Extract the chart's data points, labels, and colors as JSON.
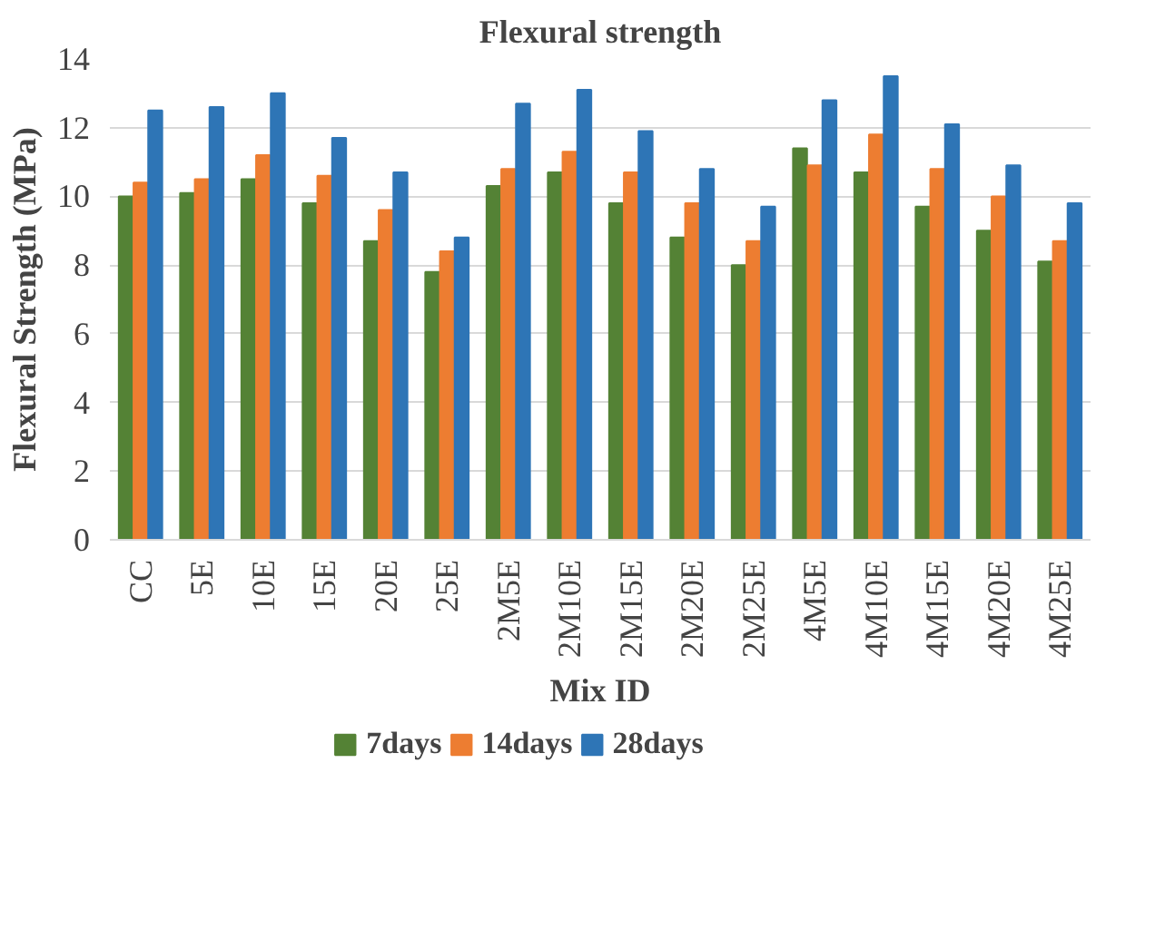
{
  "chart_data": {
    "type": "bar",
    "title": "Flexural strength",
    "xlabel": "Mix ID",
    "ylabel": "Flexural Strength (MPa)",
    "categories": [
      "CC",
      "5E",
      "10E",
      "15E",
      "20E",
      "25E",
      "2M5E",
      "2M10E",
      "2M15E",
      "2M20E",
      "2M25E",
      "4M5E",
      "4M10E",
      "4M15E",
      "4M20E",
      "4M25E"
    ],
    "series": [
      {
        "name": "7days",
        "color": "#548235",
        "values": [
          10.0,
          10.1,
          10.5,
          9.8,
          8.7,
          7.8,
          10.3,
          10.7,
          9.8,
          8.8,
          8.0,
          11.4,
          10.7,
          9.7,
          9.0,
          8.1
        ]
      },
      {
        "name": "14days",
        "color": "#ed7d31",
        "values": [
          10.4,
          10.5,
          11.2,
          10.6,
          9.6,
          8.4,
          10.8,
          11.3,
          10.7,
          9.8,
          8.7,
          10.9,
          11.8,
          10.8,
          10.0,
          8.7
        ]
      },
      {
        "name": "28days",
        "color": "#2e75b6",
        "values": [
          12.5,
          12.6,
          13.0,
          11.7,
          10.7,
          8.8,
          12.7,
          13.1,
          11.9,
          10.8,
          9.7,
          12.8,
          13.5,
          12.1,
          10.9,
          9.8
        ]
      }
    ],
    "ylim": [
      0,
      14
    ],
    "yticks": [
      0,
      2,
      4,
      6,
      8,
      10,
      12,
      14
    ],
    "grid": "y",
    "legend": "bottom"
  }
}
